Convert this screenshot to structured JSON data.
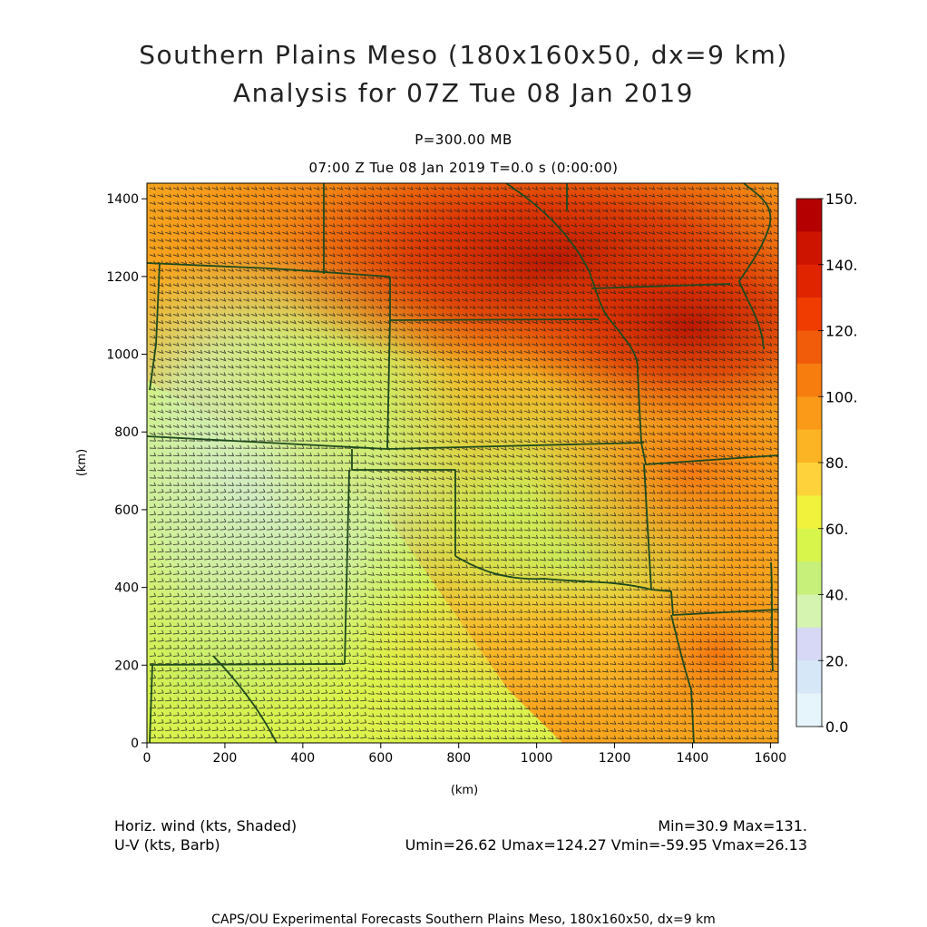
{
  "header": {
    "title_line1": "Southern Plains Meso (180x160x50, dx=9 km)",
    "title_line2": "Analysis for 07Z Tue 08 Jan 2019",
    "level": "P=300.00 MB",
    "time": "07:00 Z Tue 08 Jan 2019    T=0.0 s (0:00:00)"
  },
  "map": {
    "x_axis_label": "(km)",
    "y_axis_label": "(km)",
    "x_ticks": [
      0,
      200,
      400,
      600,
      800,
      1000,
      1200,
      1400,
      1600
    ],
    "y_ticks": [
      0,
      200,
      400,
      600,
      800,
      1000,
      1200,
      1400
    ],
    "x_range": [
      0,
      1620
    ],
    "y_range": [
      0,
      1440
    ],
    "boundary_color": "#1e4a1e",
    "barb_color": "#222222"
  },
  "colorbar": {
    "labels": [
      "150.",
      "140.",
      "120.",
      "100.",
      "80.",
      "60.",
      "40.",
      "20.",
      "0.0"
    ],
    "colors": [
      "#b40000",
      "#cc1400",
      "#e02400",
      "#f03c00",
      "#f05c0a",
      "#f77d0f",
      "#fa9a18",
      "#fcb425",
      "#fdd23a",
      "#f0f23c",
      "#d8f54c",
      "#c6f07a",
      "#d4f4b0",
      "#d6d8f6",
      "#d6e8f7",
      "#e6f5fb"
    ]
  },
  "stats": {
    "field_name": "Horiz. wind (kts, Shaded)",
    "vector_name": "U-V (kts, Barb)",
    "min_max": "Min=30.9  Max=131.",
    "uv_stats": "Umin=26.62  Umax=124.27  Vmin=-59.95  Vmax=26.13"
  },
  "footer": "CAPS/OU Experimental Forecasts   Southern Plains Meso, 180x160x50, dx=9 km"
}
